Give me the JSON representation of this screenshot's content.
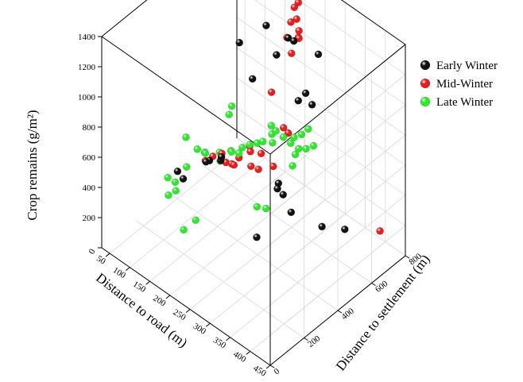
{
  "chart_data": {
    "type": "scatter3d",
    "title": "",
    "xlabel": "Distance to road (m)",
    "ylabel": "Distance to settlement (m)",
    "zlabel": "Crop remains (g/m²)",
    "x_ticks": [
      "50",
      "100",
      "150",
      "200",
      "250",
      "300",
      "350",
      "400",
      "450"
    ],
    "y_ticks": [
      "0",
      "200",
      "400",
      "600",
      "800"
    ],
    "z_ticks": [
      "0",
      "200",
      "400",
      "600",
      "800",
      "1000",
      "1200",
      "1400"
    ],
    "xlim": [
      30,
      450
    ],
    "ylim": [
      0,
      800
    ],
    "zlim": [
      0,
      1400
    ],
    "grid": true,
    "legend_position": "top-right",
    "series": [
      {
        "name": "Early Winter",
        "color": "#111111",
        "points": [
          [
            60,
            750,
            1300
          ],
          [
            120,
            760,
            950
          ],
          [
            70,
            720,
            780
          ],
          [
            150,
            750,
            820
          ],
          [
            90,
            750,
            550
          ],
          [
            200,
            760,
            600
          ],
          [
            230,
            770,
            620
          ],
          [
            210,
            780,
            650
          ],
          [
            200,
            700,
            1070
          ],
          [
            210,
            710,
            1060
          ],
          [
            250,
            760,
            1000
          ],
          [
            130,
            400,
            400
          ],
          [
            130,
            380,
            410
          ],
          [
            150,
            420,
            420
          ],
          [
            160,
            400,
            480
          ],
          [
            80,
            330,
            300
          ],
          [
            90,
            340,
            260
          ],
          [
            260,
            500,
            400
          ],
          [
            280,
            480,
            380
          ],
          [
            300,
            480,
            300
          ],
          [
            360,
            520,
            280
          ],
          [
            400,
            560,
            300
          ],
          [
            290,
            300,
            280
          ],
          [
            270,
            470,
            410
          ]
        ]
      },
      {
        "name": "Mid-Winter",
        "color": "#e61e1e",
        "points": [
          [
            40,
            600,
            1380
          ],
          [
            200,
            760,
            1250
          ],
          [
            190,
            760,
            1200
          ],
          [
            200,
            750,
            1150
          ],
          [
            190,
            740,
            1120
          ],
          [
            210,
            740,
            1100
          ],
          [
            210,
            740,
            1050
          ],
          [
            200,
            720,
            950
          ],
          [
            180,
            740,
            1000
          ],
          [
            200,
            760,
            1020
          ],
          [
            150,
            720,
            600
          ],
          [
            200,
            700,
            440
          ],
          [
            180,
            720,
            420
          ],
          [
            140,
            450,
            420
          ],
          [
            150,
            450,
            380
          ],
          [
            160,
            460,
            380
          ],
          [
            170,
            450,
            400
          ],
          [
            130,
            420,
            410
          ],
          [
            120,
            400,
            380
          ],
          [
            170,
            480,
            420
          ],
          [
            200,
            480,
            420
          ],
          [
            210,
            500,
            400
          ],
          [
            180,
            520,
            480
          ],
          [
            190,
            500,
            480
          ],
          [
            200,
            540,
            450
          ],
          [
            230,
            540,
            420
          ],
          [
            450,
            650,
            300
          ]
        ]
      },
      {
        "name": "Late Winter",
        "color": "#2ee82e",
        "points": [
          [
            80,
            380,
            480
          ],
          [
            100,
            400,
            420
          ],
          [
            120,
            400,
            430
          ],
          [
            110,
            420,
            400
          ],
          [
            130,
            460,
            400
          ],
          [
            140,
            440,
            380
          ],
          [
            90,
            360,
            320
          ],
          [
            60,
            320,
            230
          ],
          [
            70,
            340,
            200
          ],
          [
            80,
            320,
            180
          ],
          [
            70,
            300,
            150
          ],
          [
            150,
            480,
            430
          ],
          [
            160,
            460,
            460
          ],
          [
            170,
            480,
            450
          ],
          [
            170,
            500,
            470
          ],
          [
            180,
            520,
            490
          ],
          [
            190,
            540,
            500
          ],
          [
            200,
            550,
            520
          ],
          [
            220,
            560,
            540
          ],
          [
            210,
            580,
            560
          ],
          [
            200,
            600,
            580
          ],
          [
            220,
            580,
            600
          ],
          [
            230,
            600,
            560
          ],
          [
            240,
            620,
            520
          ],
          [
            240,
            640,
            540
          ],
          [
            250,
            660,
            560
          ],
          [
            260,
            620,
            520
          ],
          [
            260,
            600,
            500
          ],
          [
            270,
            640,
            520
          ],
          [
            280,
            660,
            540
          ],
          [
            250,
            700,
            560
          ],
          [
            270,
            560,
            480
          ],
          [
            120,
            540,
            560
          ],
          [
            110,
            580,
            560
          ],
          [
            240,
            420,
            280
          ],
          [
            250,
            450,
            260
          ],
          [
            150,
            200,
            160
          ],
          [
            180,
            200,
            280
          ]
        ]
      }
    ]
  }
}
